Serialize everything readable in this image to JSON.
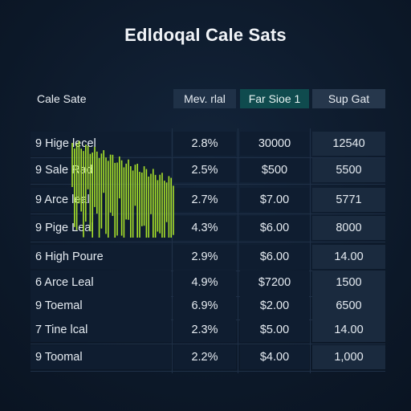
{
  "title": "Edldoqal Cale Sats",
  "table": {
    "headers": [
      "Cale Sate",
      "Mev. rlal",
      "Far Sioe 1",
      "Sup Gat"
    ],
    "rows": [
      [
        "9 Hige lecel",
        "2.8%",
        "30000",
        "12540"
      ],
      [
        "9 Sale Rad",
        "2.5%",
        "$500",
        "5500"
      ],
      [
        "9 Arce leal",
        "2.7%",
        "$7.00",
        "5771"
      ],
      [
        "9 Pige Leal",
        "4.3%",
        "$6.00",
        "8000"
      ],
      [
        "6 High Poure",
        "2.9%",
        "$6.00",
        "14.00"
      ],
      [
        "6 Arce Leal",
        "4.9%",
        "$7200",
        "1500"
      ],
      [
        "9 Toemal",
        "6.9%",
        "$2.00",
        "6500"
      ],
      [
        "7 Tine lcal",
        "2.3%",
        "$5.00",
        "14.00"
      ],
      [
        "9 Toomal",
        "2.2%",
        "$4.00",
        "1,000"
      ]
    ]
  },
  "colors": {
    "background": "#0d1a2b",
    "accent_header": "#0f4b4e",
    "sparkline": "#a8e22a"
  }
}
